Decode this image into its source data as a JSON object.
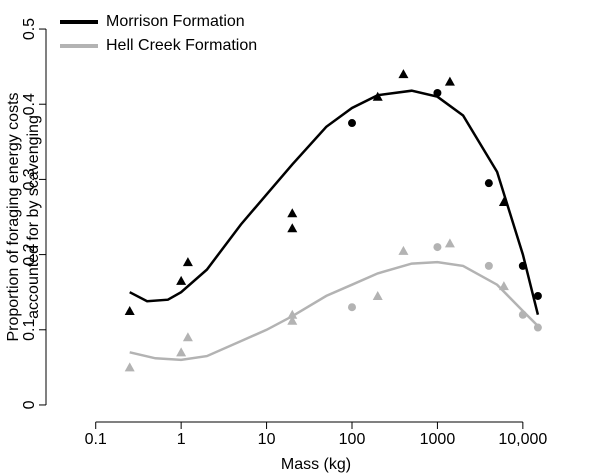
{
  "chart_data": {
    "type": "scatter",
    "xlabel": "Mass (kg)",
    "ylabel": [
      "Proportion of foraging energy costs",
      "accounted for by scavenging"
    ],
    "xscale": "log",
    "xlim": [
      0.05,
      80000
    ],
    "ylim": [
      -0.02,
      0.52
    ],
    "xticks": [
      0.1,
      1,
      10,
      100,
      1000,
      {
        "value": 10000,
        "label": "10,000"
      }
    ],
    "yticks": [
      0,
      0.1,
      0.2,
      0.3,
      0.4,
      0.5
    ],
    "legend": "top-left",
    "series": [
      {
        "name": "Morrison Formation",
        "color": "#000000",
        "x": [
          0.25,
          1,
          1.2,
          20,
          20,
          200,
          400,
          1400,
          6000,
          100,
          1000,
          4000,
          10000,
          15000
        ],
        "values": [
          0.125,
          0.165,
          0.19,
          0.255,
          0.235,
          0.41,
          0.44,
          0.43,
          0.27,
          0.375,
          0.415,
          0.295,
          0.185,
          0.145
        ],
        "markers": [
          "triangle",
          "triangle",
          "triangle",
          "triangle",
          "triangle",
          "triangle",
          "triangle",
          "triangle",
          "triangle",
          "circle",
          "circle",
          "circle",
          "circle",
          "circle"
        ],
        "fit_x": [
          0.25,
          0.4,
          0.7,
          1,
          2,
          5,
          10,
          20,
          50,
          100,
          200,
          500,
          1000,
          2000,
          5000,
          10000,
          15000
        ],
        "fit_values": [
          0.15,
          0.138,
          0.14,
          0.15,
          0.18,
          0.24,
          0.28,
          0.32,
          0.37,
          0.395,
          0.412,
          0.418,
          0.41,
          0.385,
          0.31,
          0.2,
          0.12
        ]
      },
      {
        "name": "Hell Creek Formation",
        "color": "#b3b3b3",
        "x": [
          0.25,
          1,
          1.2,
          20,
          20,
          200,
          400,
          1400,
          6000,
          100,
          1000,
          4000,
          10000,
          15000
        ],
        "values": [
          0.05,
          0.07,
          0.09,
          0.12,
          0.112,
          0.145,
          0.205,
          0.215,
          0.158,
          0.13,
          0.21,
          0.185,
          0.12,
          0.103
        ],
        "markers": [
          "triangle",
          "triangle",
          "triangle",
          "triangle",
          "triangle",
          "triangle",
          "triangle",
          "triangle",
          "triangle",
          "circle",
          "circle",
          "circle",
          "circle",
          "circle"
        ],
        "fit_x": [
          0.25,
          0.5,
          1,
          2,
          5,
          10,
          20,
          50,
          100,
          200,
          500,
          1000,
          2000,
          5000,
          10000,
          15000
        ],
        "fit_values": [
          0.07,
          0.062,
          0.06,
          0.065,
          0.085,
          0.1,
          0.118,
          0.145,
          0.16,
          0.175,
          0.188,
          0.19,
          0.185,
          0.16,
          0.125,
          0.105
        ]
      }
    ]
  }
}
